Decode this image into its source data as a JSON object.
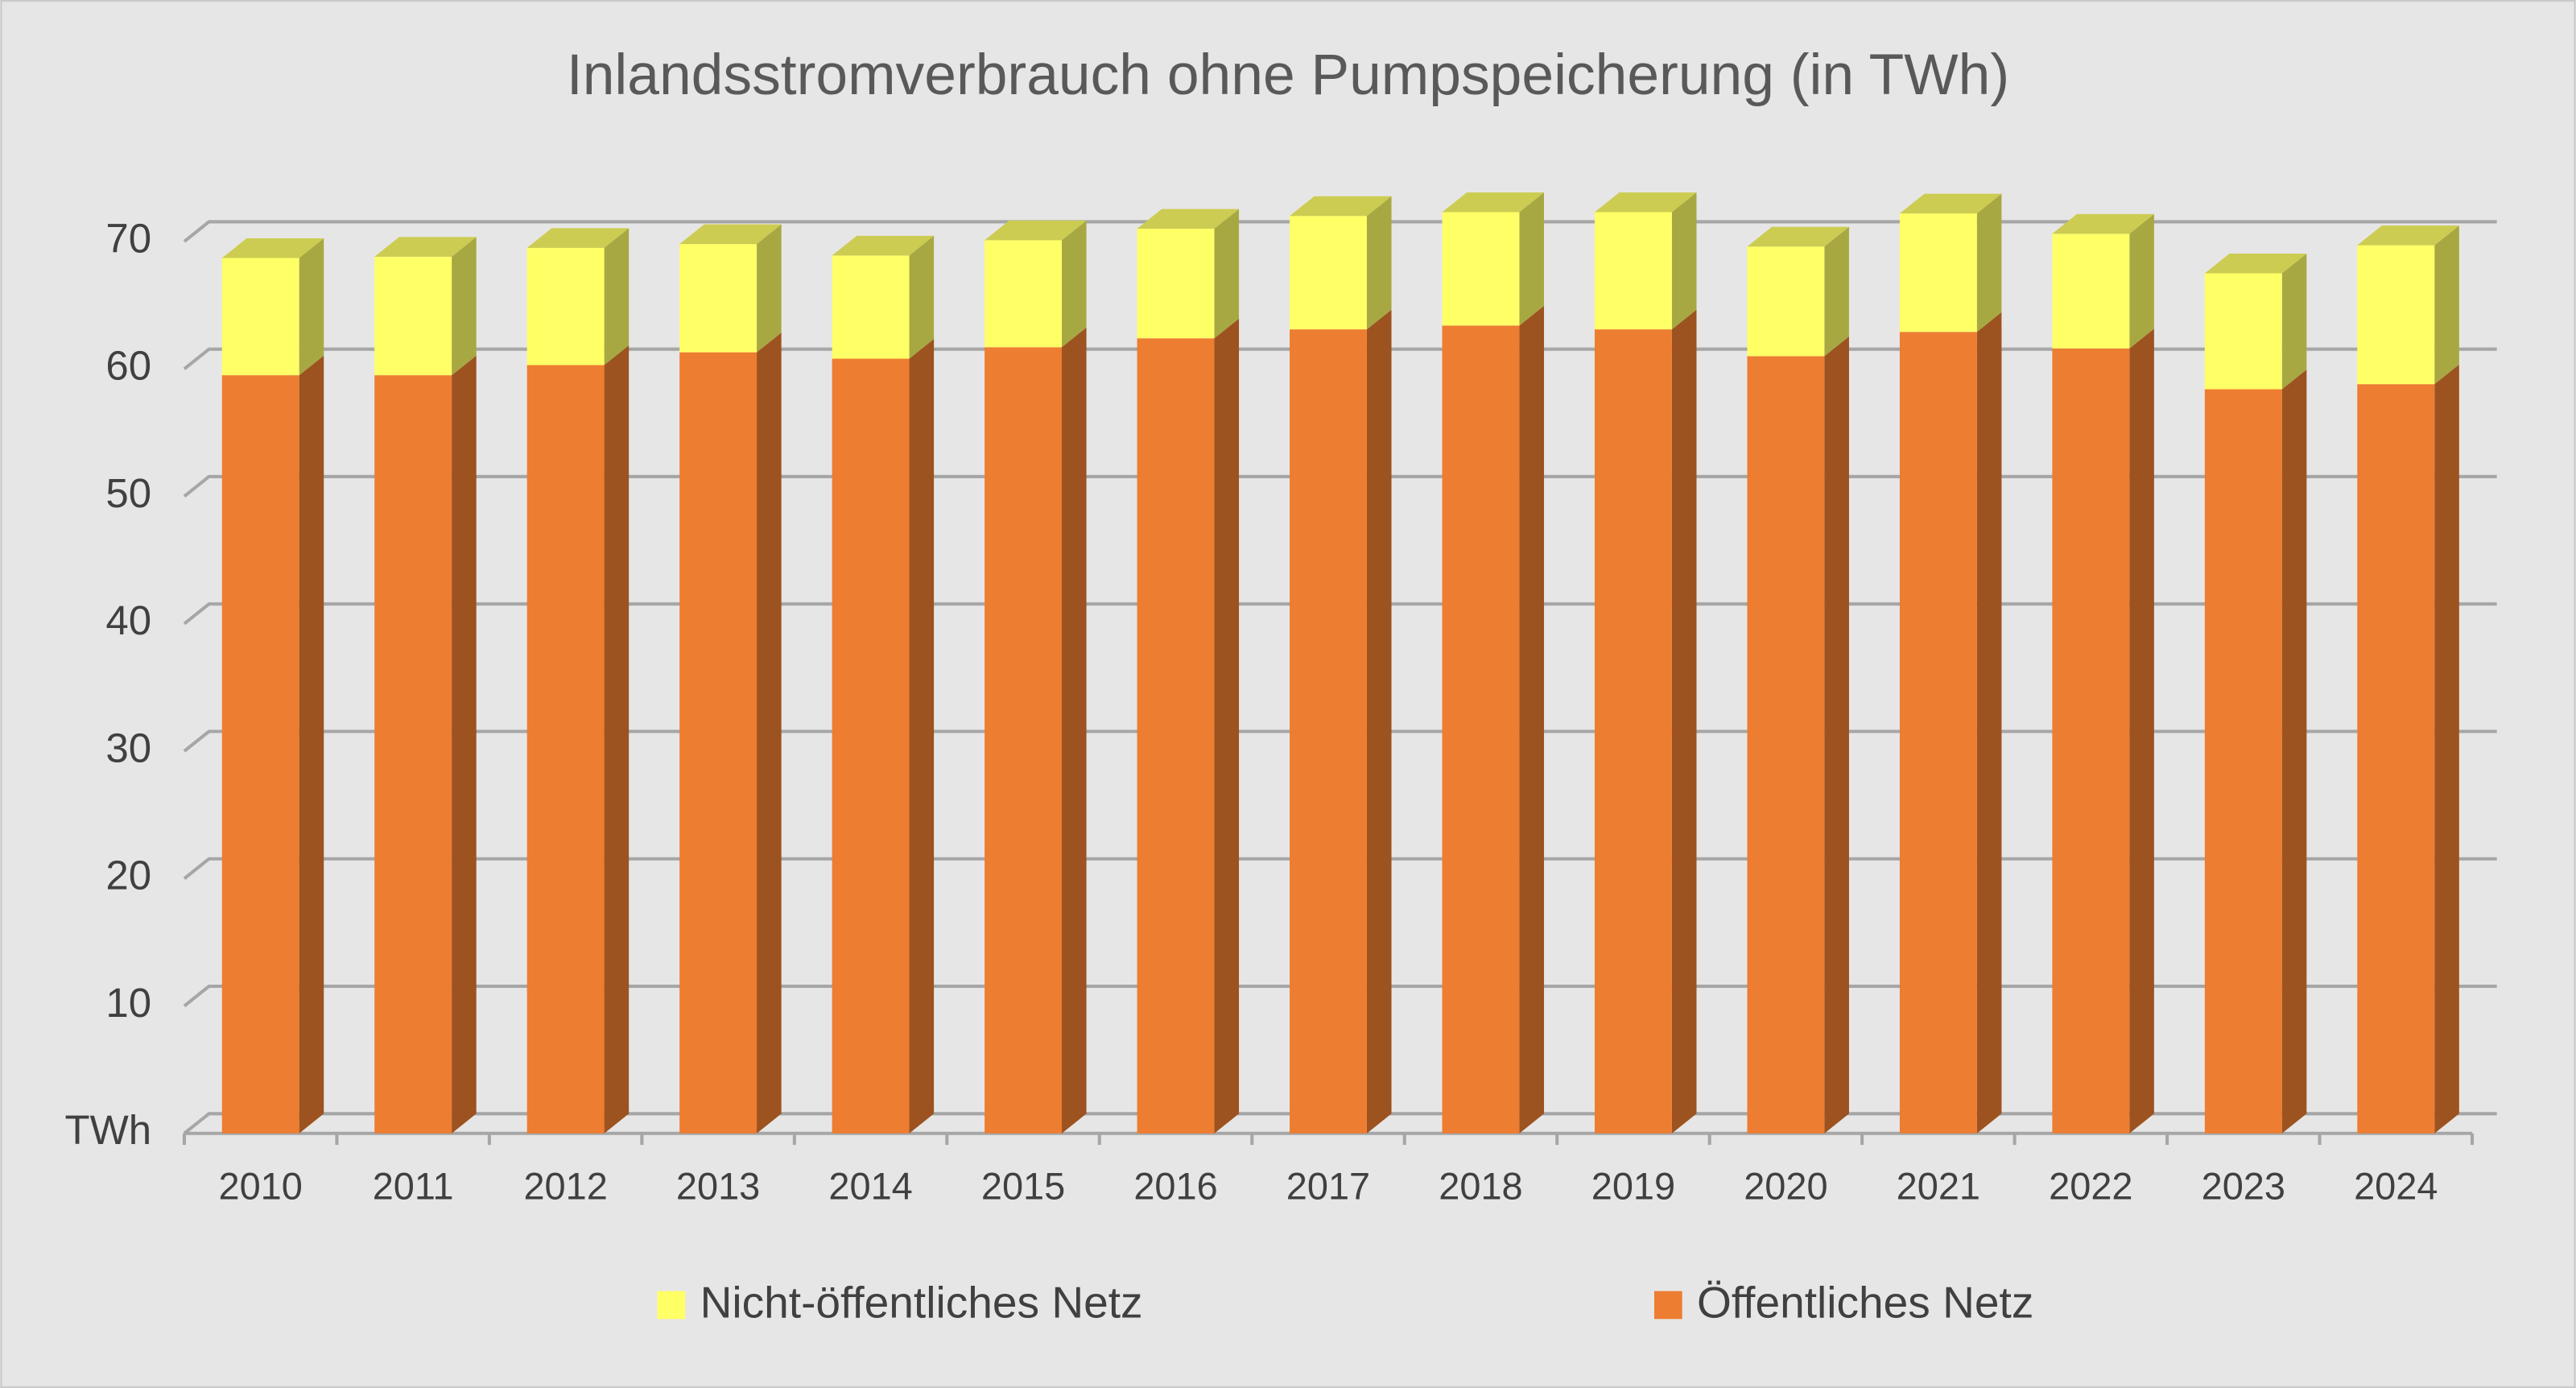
{
  "chart_data": {
    "type": "bar3d_stacked",
    "title": "Inlandsstromverbrauch ohne Pumpspeicherung (in TWh)",
    "categories": [
      "2010",
      "2011",
      "2012",
      "2013",
      "2014",
      "2015",
      "2016",
      "2017",
      "2018",
      "2019",
      "2020",
      "2021",
      "2022",
      "2023",
      "2024"
    ],
    "series": [
      {
        "name": "Nicht-öffentliches Netz",
        "color": "#FFFF66",
        "values": [
          9.2,
          9.3,
          9.2,
          8.5,
          8.1,
          8.4,
          8.6,
          8.9,
          8.9,
          9.2,
          8.6,
          9.3,
          9.0,
          9.1,
          10.9
        ]
      },
      {
        "name": "Öffentliches Netz",
        "color": "#ED7D31",
        "values": [
          59.5,
          59.5,
          60.3,
          61.3,
          60.8,
          61.7,
          62.4,
          63.1,
          63.4,
          63.1,
          61.0,
          62.9,
          61.6,
          58.4,
          58.8
        ]
      }
    ],
    "ylim": [
      0,
      70
    ],
    "yticks": [
      {
        "value": 0,
        "label": "TWh"
      },
      10,
      20,
      30,
      40,
      50,
      60,
      70
    ],
    "grid": true,
    "legend": "bottom"
  }
}
